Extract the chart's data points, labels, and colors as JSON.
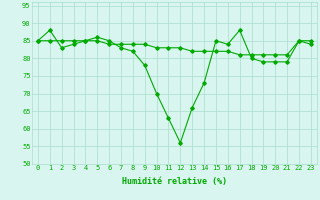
{
  "line1_x": [
    0,
    1,
    2,
    3,
    4,
    5,
    6,
    7,
    8,
    9,
    10,
    11,
    12,
    13,
    14,
    15,
    16,
    17,
    18,
    19,
    20,
    21,
    22,
    23
  ],
  "line1_y": [
    85,
    88,
    83,
    84,
    85,
    86,
    85,
    83,
    82,
    78,
    70,
    63,
    56,
    66,
    73,
    85,
    84,
    88,
    80,
    79,
    79,
    79,
    85,
    84
  ],
  "line2_x": [
    0,
    1,
    2,
    3,
    4,
    5,
    6,
    7,
    8,
    9,
    10,
    11,
    12,
    13,
    14,
    15,
    16,
    17,
    18,
    19,
    20,
    21,
    22,
    23
  ],
  "line2_y": [
    85,
    85,
    85,
    85,
    85,
    85,
    84,
    84,
    84,
    84,
    83,
    83,
    83,
    82,
    82,
    82,
    82,
    81,
    81,
    81,
    81,
    81,
    85,
    85
  ],
  "line_color": "#00aa00",
  "bg_color": "#d8f5f0",
  "grid_color": "#aaddcc",
  "ylim": [
    50,
    96
  ],
  "xlim": [
    -0.5,
    23.5
  ],
  "yticks": [
    50,
    55,
    60,
    65,
    70,
    75,
    80,
    85,
    90,
    95
  ],
  "xticks": [
    0,
    1,
    2,
    3,
    4,
    5,
    6,
    7,
    8,
    9,
    10,
    11,
    12,
    13,
    14,
    15,
    16,
    17,
    18,
    19,
    20,
    21,
    22,
    23
  ],
  "xlabel": "Humidité relative (%)",
  "xlabel_fontsize": 6,
  "tick_fontsize": 5,
  "marker": "D",
  "markersize": 1.8,
  "linewidth": 0.8
}
